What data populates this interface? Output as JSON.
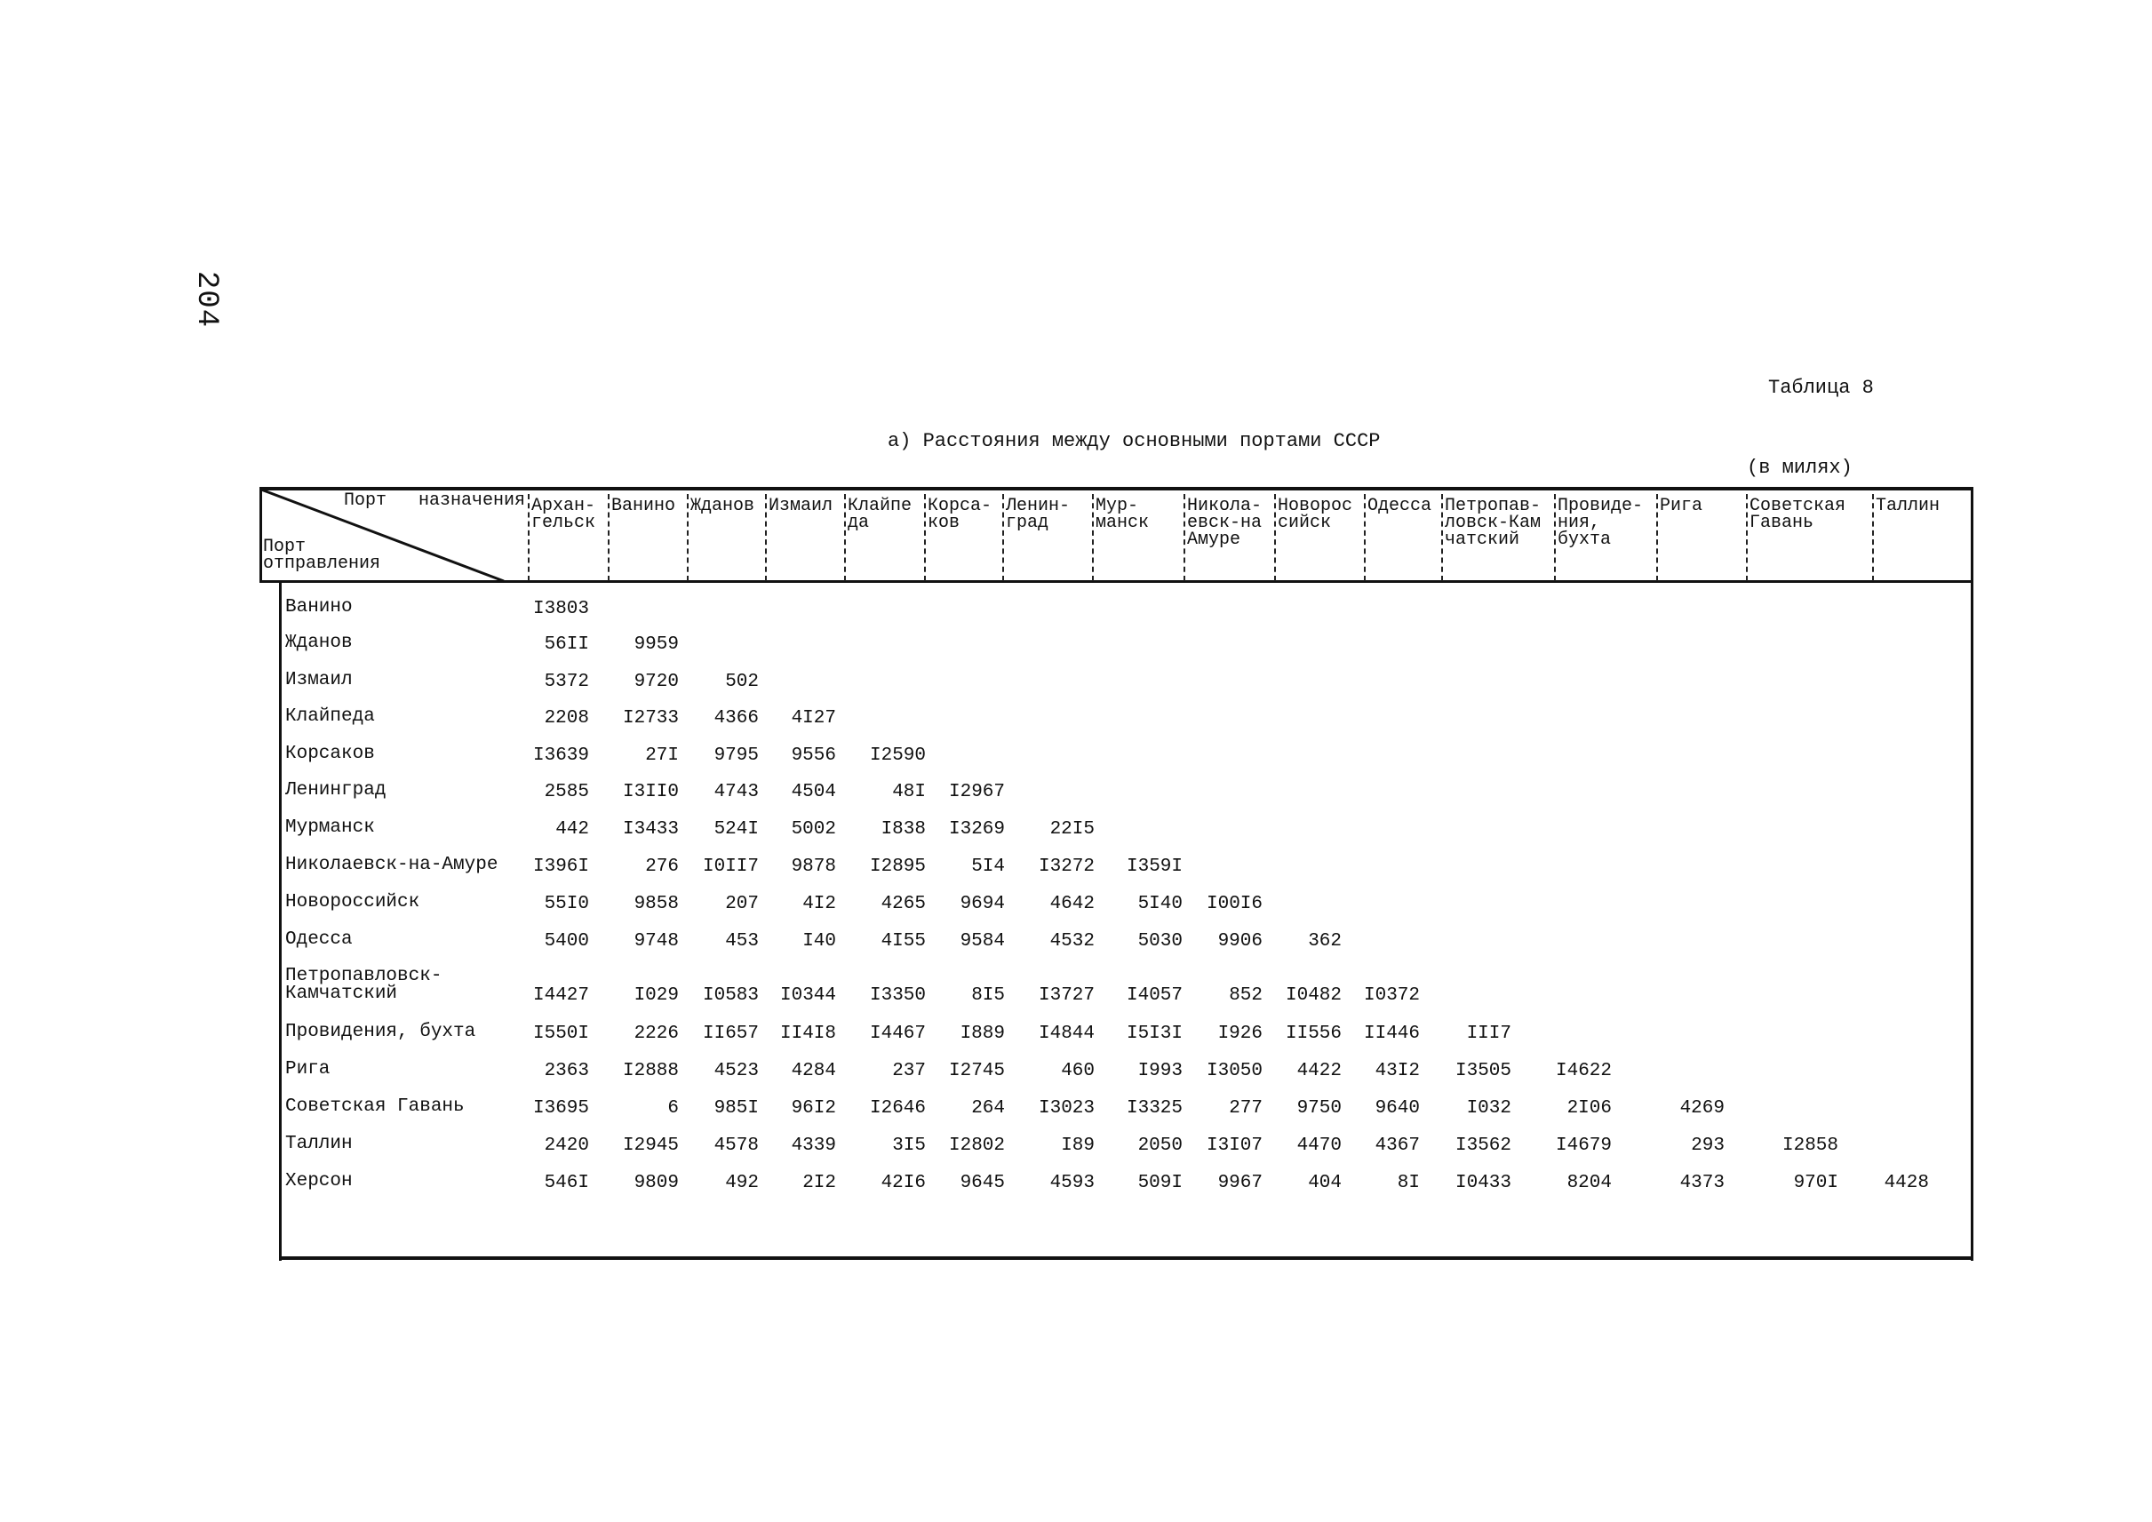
{
  "page_number": "204",
  "table_number": "Таблица 8",
  "title": "а) Расстояния между основными портами СССР",
  "units": "(в милях)",
  "corner": {
    "destination": "Порт   назначения",
    "origin": "Порт\nотправления"
  },
  "columns": [
    "Архан-\nгельск",
    "Ванино",
    "Жданов",
    "Измаил",
    "Клайпе\nда",
    "Корса-\nков",
    "Ленин-\nград",
    "Мур-\nманск",
    "Никола-\nевск-на\nАмуре",
    "Новорос\nсийск",
    "Одесса",
    "Петропав-\nловск-Кам\nчатский",
    "Провиде-\nния,\nбухта",
    "Рига",
    "Советская\nГавань",
    "Таллин"
  ],
  "rows": [
    {
      "label": "Ванино",
      "values": [
        "I3803"
      ]
    },
    {
      "label": "Жданов",
      "values": [
        "56II",
        "9959"
      ]
    },
    {
      "label": "Измаил",
      "values": [
        "5372",
        "9720",
        "502"
      ]
    },
    {
      "label": "Клайпеда",
      "values": [
        "2208",
        "I2733",
        "4366",
        "4I27"
      ]
    },
    {
      "label": "Корсаков",
      "values": [
        "I3639",
        "27I",
        "9795",
        "9556",
        "I2590"
      ]
    },
    {
      "label": "Ленинград",
      "values": [
        "2585",
        "I3II0",
        "4743",
        "4504",
        "48I",
        "I2967"
      ]
    },
    {
      "label": "Мурманск",
      "values": [
        "442",
        "I3433",
        "524I",
        "5002",
        "I838",
        "I3269",
        "22I5"
      ]
    },
    {
      "label": "Николаевск-на-Амуре",
      "values": [
        "I396I",
        "276",
        "I0II7",
        "9878",
        "I2895",
        "5I4",
        "I3272",
        "I359I"
      ]
    },
    {
      "label": "Новороссийск",
      "values": [
        "55I0",
        "9858",
        "207",
        "4I2",
        "4265",
        "9694",
        "4642",
        "5I40",
        "I00I6"
      ]
    },
    {
      "label": "Одесса",
      "values": [
        "5400",
        "9748",
        "453",
        "I40",
        "4I55",
        "9584",
        "4532",
        "5030",
        "9906",
        "362"
      ]
    },
    {
      "label": "Петропавловск-\nКамчатский",
      "values": [
        "I4427",
        "I029",
        "I0583",
        "I0344",
        "I3350",
        "8I5",
        "I3727",
        "I4057",
        "852",
        "I0482",
        "I0372"
      ]
    },
    {
      "label": "Провидения, бухта",
      "values": [
        "I550I",
        "2226",
        "II657",
        "II4I8",
        "I4467",
        "I889",
        "I4844",
        "I5I3I",
        "I926",
        "II556",
        "II446",
        "III7"
      ]
    },
    {
      "label": "Рига",
      "values": [
        "2363",
        "I2888",
        "4523",
        "4284",
        "237",
        "I2745",
        "460",
        "I993",
        "I3050",
        "4422",
        "43I2",
        "I3505",
        "I4622"
      ]
    },
    {
      "label": "Советская Гавань",
      "values": [
        "I3695",
        "6",
        "985I",
        "96I2",
        "I2646",
        "264",
        "I3023",
        "I3325",
        "277",
        "9750",
        "9640",
        "I032",
        "2I06",
        "4269"
      ]
    },
    {
      "label": "Таллин",
      "values": [
        "2420",
        "I2945",
        "4578",
        "4339",
        "3I5",
        "I2802",
        "I89",
        "2050",
        "I3I07",
        "4470",
        "4367",
        "I3562",
        "I4679",
        "293",
        "I2858"
      ]
    },
    {
      "label": "Херсон",
      "values": [
        "546I",
        "9809",
        "492",
        "2I2",
        "42I6",
        "9645",
        "4593",
        "509I",
        "9967",
        "404",
        "8I",
        "I0433",
        "8204",
        "4373",
        "970I",
        "4428"
      ]
    }
  ]
}
